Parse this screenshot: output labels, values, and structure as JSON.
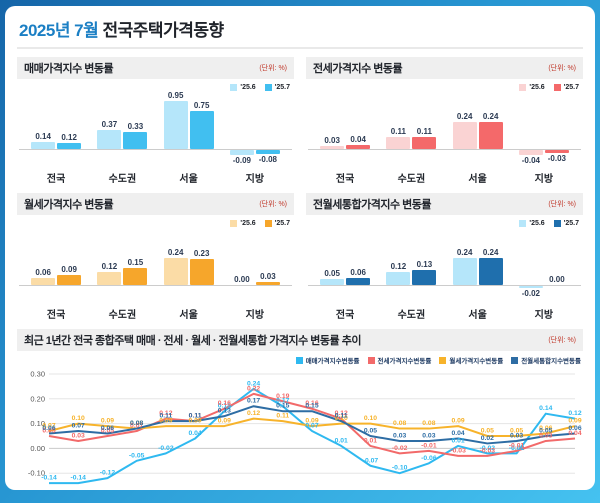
{
  "header": {
    "title_month": "2025년 7월",
    "title_rest": " 전국주택가격동향"
  },
  "chart_data": [
    {
      "type": "bar",
      "id": "sale-price",
      "title": "매매가격지수 변동률",
      "unit": "(단위: %)",
      "categories": [
        "전국",
        "수도권",
        "서울",
        "지방"
      ],
      "series": [
        {
          "name": "'25.6",
          "color": "#b5e6fa",
          "values": [
            0.14,
            0.37,
            0.95,
            -0.09
          ]
        },
        {
          "name": "'25.7",
          "color": "#41bff0",
          "values": [
            0.12,
            0.33,
            0.75,
            -0.08
          ]
        }
      ]
    },
    {
      "type": "bar",
      "id": "jeonse-price",
      "title": "전세가격지수 변동률",
      "unit": "(단위: %)",
      "categories": [
        "전국",
        "수도권",
        "서울",
        "지방"
      ],
      "series": [
        {
          "name": "'25.6",
          "color": "#fad3d3",
          "values": [
            0.03,
            0.11,
            0.24,
            -0.04
          ]
        },
        {
          "name": "'25.7",
          "color": "#f4696a",
          "values": [
            0.04,
            0.11,
            0.24,
            -0.03
          ]
        }
      ]
    },
    {
      "type": "bar",
      "id": "wolse-price",
      "title": "월세가격지수 변동률",
      "unit": "(단위: %)",
      "categories": [
        "전국",
        "수도권",
        "서울",
        "지방"
      ],
      "series": [
        {
          "name": "'25.6",
          "color": "#fbdca6",
          "values": [
            0.06,
            0.12,
            0.24,
            0.0
          ]
        },
        {
          "name": "'25.7",
          "color": "#f6a62b",
          "values": [
            0.09,
            0.15,
            0.23,
            0.03
          ]
        }
      ]
    },
    {
      "type": "bar",
      "id": "combined-rent-price",
      "title": "전월세통합가격지수 변동률",
      "unit": "(단위: %)",
      "categories": [
        "전국",
        "수도권",
        "서울",
        "지방"
      ],
      "series": [
        {
          "name": "'25.6",
          "color": "#b5e6fa",
          "values": [
            0.05,
            0.12,
            0.24,
            -0.02
          ]
        },
        {
          "name": "'25.7",
          "color": "#1f6fad",
          "values": [
            0.06,
            0.13,
            0.24,
            0.0
          ]
        }
      ]
    },
    {
      "type": "line",
      "id": "trend",
      "title": "최근 1년간 전국 종합주택 매매 · 전세 · 월세 · 전월세통합 가격지수 변동률 추이",
      "unit": "(단위: %)",
      "x": [
        "'24.01",
        "'24.02",
        "'24.03",
        "'24.04",
        "'24.05",
        "'24.06",
        "'24.07",
        "'24.08",
        "'24.09",
        "'24.10",
        "'24.11",
        "'24.12",
        "'25.01",
        "'25.02",
        "'25.03",
        "'25.04",
        "'25.05",
        "'25.06",
        "'25.07"
      ],
      "ylim": [
        -0.2,
        0.3
      ],
      "yticks": [
        0.3,
        0.2,
        0.1,
        0.0,
        -0.1,
        -0.2
      ],
      "grid": true,
      "legend_position": "top-right",
      "series": [
        {
          "name": "매매가격지수변동률",
          "color": "#2fb9f0",
          "values": [
            -0.14,
            -0.14,
            -0.12,
            -0.05,
            -0.02,
            0.04,
            0.15,
            0.24,
            0.17,
            0.07,
            0.01,
            -0.07,
            -0.1,
            -0.06,
            0.01,
            -0.02,
            -0.02,
            0.14,
            0.12
          ]
        },
        {
          "name": "전세가격지수변동률",
          "color": "#f26a6a",
          "values": [
            0.05,
            0.03,
            0.05,
            0.07,
            0.12,
            0.11,
            0.16,
            0.22,
            0.19,
            0.16,
            0.12,
            0.01,
            -0.02,
            -0.01,
            -0.03,
            -0.03,
            -0.01,
            0.03,
            0.04
          ]
        },
        {
          "name": "월세가격지수변동률",
          "color": "#f7b32b",
          "values": [
            0.07,
            0.1,
            0.09,
            0.08,
            0.09,
            0.09,
            0.09,
            0.12,
            0.11,
            0.09,
            0.1,
            0.1,
            0.08,
            0.08,
            0.09,
            0.05,
            0.05,
            0.06,
            0.09
          ]
        },
        {
          "name": "전월세통합지수변동률",
          "color": "#2e6da4",
          "values": [
            0.06,
            0.07,
            0.06,
            0.08,
            0.11,
            0.11,
            0.13,
            0.17,
            0.15,
            0.15,
            0.11,
            0.05,
            0.03,
            0.03,
            0.04,
            0.02,
            0.03,
            0.05,
            0.06
          ]
        }
      ]
    }
  ]
}
